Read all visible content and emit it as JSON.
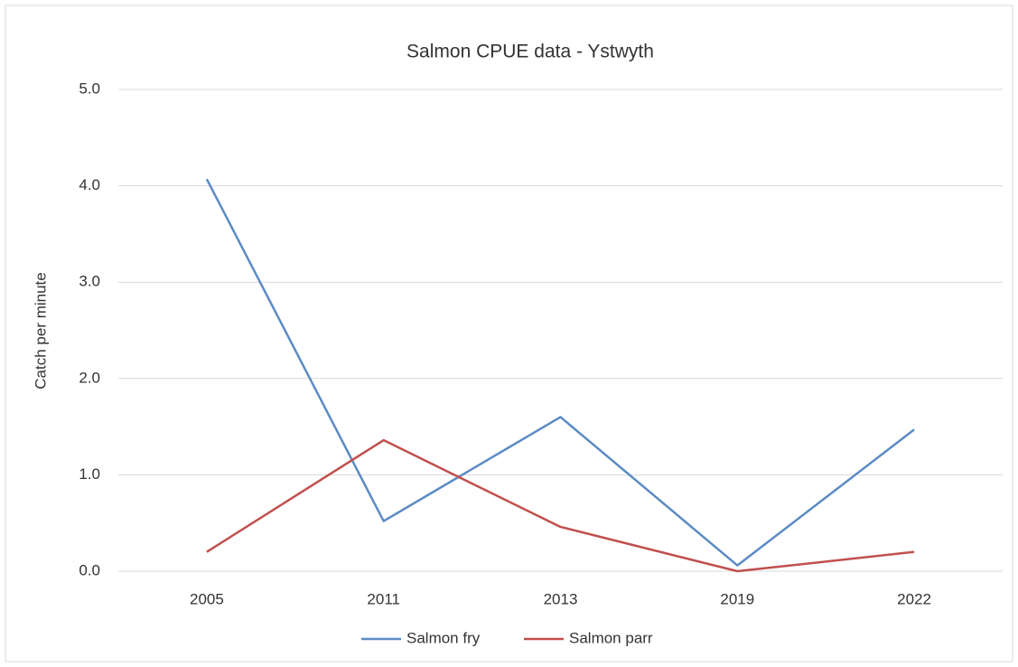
{
  "chart_data": {
    "type": "line",
    "title": "Salmon CPUE data - Ystwyth",
    "y_label": "Catch per minute",
    "categories": [
      "2005",
      "2011",
      "2013",
      "2019",
      "2022"
    ],
    "series": [
      {
        "name": "Salmon fry",
        "color": "#5b8bc4",
        "values": [
          4.07,
          0.52,
          1.6,
          0.06,
          1.47
        ]
      },
      {
        "name": "Salmon parr",
        "color": "#c0504d",
        "values": [
          0.2,
          1.36,
          0.46,
          0.0,
          0.2
        ]
      }
    ],
    "ylim": [
      0,
      5
    ],
    "yticks": [
      {
        "value": 0,
        "label": "0.0"
      },
      {
        "value": 1,
        "label": "1.0"
      },
      {
        "value": 2,
        "label": "2.0"
      },
      {
        "value": 3,
        "label": "3.0"
      },
      {
        "value": 4,
        "label": "4.0"
      },
      {
        "value": 5,
        "label": "5.0"
      }
    ],
    "grid": true,
    "legend": "bottom"
  }
}
